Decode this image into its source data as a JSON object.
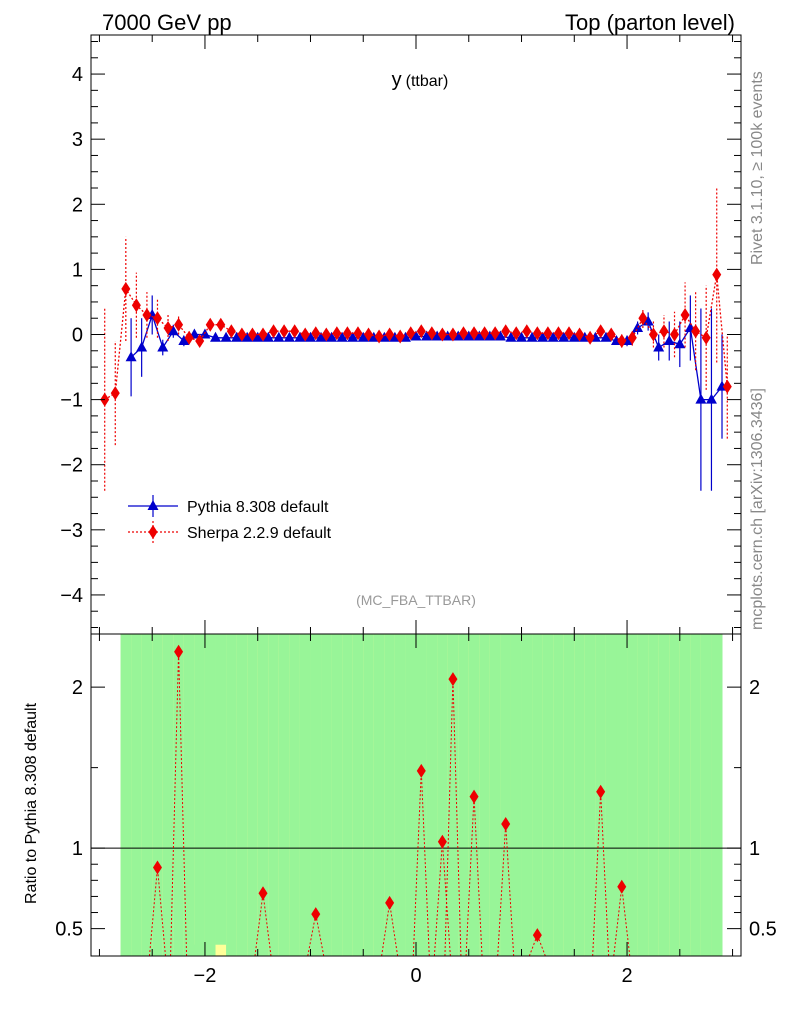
{
  "header": {
    "left": "7000 GeV pp",
    "right": "Top (parton level)"
  },
  "side_labels": {
    "rivet": "Rivet 3.1.10, ≥ 100k events",
    "mcplots": "mcplots.cern.ch [arXiv:1306.3436]"
  },
  "chart_data": [
    {
      "type": "line",
      "title": "y",
      "title_sub": "(ttbar)",
      "analysis": "(MC_FBA_TTBAR)",
      "xlabel": "",
      "ylabel": "",
      "xlim": [
        -3.08,
        3.08
      ],
      "ylim": [
        -4.6,
        4.6
      ],
      "x_ticks": [
        -2,
        0,
        2
      ],
      "y_ticks": [
        -4,
        -3,
        -2,
        -1,
        0,
        1,
        2,
        3,
        4
      ],
      "legend_position": "lower-left",
      "series": [
        {
          "name": "Pythia 8.308 default",
          "color": "#0000cc",
          "marker": "triangle",
          "line": "solid",
          "x": [
            -2.7,
            -2.6,
            -2.5,
            -2.4,
            -2.3,
            -2.2,
            -2.1,
            -2.0,
            -1.9,
            -1.8,
            -1.7,
            -1.6,
            -1.5,
            -1.4,
            -1.3,
            -1.2,
            -1.1,
            -1.0,
            -0.9,
            -0.8,
            -0.7,
            -0.6,
            -0.5,
            -0.4,
            -0.3,
            -0.2,
            -0.1,
            0.0,
            0.1,
            0.2,
            0.3,
            0.4,
            0.5,
            0.6,
            0.7,
            0.8,
            0.9,
            1.0,
            1.1,
            1.2,
            1.3,
            1.4,
            1.5,
            1.6,
            1.7,
            1.8,
            1.9,
            2.0,
            2.1,
            2.2,
            2.3,
            2.4,
            2.5,
            2.6,
            2.7,
            2.8,
            2.9
          ],
          "y": [
            -0.35,
            -0.2,
            0.3,
            -0.2,
            0.05,
            -0.1,
            0.0,
            0.0,
            -0.05,
            -0.05,
            -0.05,
            -0.05,
            -0.05,
            -0.05,
            -0.05,
            -0.05,
            -0.05,
            -0.05,
            -0.05,
            -0.05,
            -0.05,
            -0.05,
            -0.05,
            -0.05,
            -0.05,
            -0.05,
            -0.05,
            -0.03,
            -0.03,
            -0.03,
            -0.03,
            -0.03,
            -0.03,
            -0.03,
            -0.03,
            -0.03,
            -0.05,
            -0.05,
            -0.05,
            -0.05,
            -0.05,
            -0.05,
            -0.05,
            -0.05,
            -0.05,
            -0.05,
            -0.1,
            -0.1,
            0.1,
            0.2,
            -0.2,
            -0.1,
            -0.15,
            0.1,
            -1.0,
            -1.0,
            -0.8
          ],
          "yerr": [
            0.6,
            0.45,
            0.3,
            0.12,
            0.1,
            0.08,
            0.06,
            0.05,
            0.04,
            0.04,
            0.04,
            0.04,
            0.04,
            0.04,
            0.04,
            0.04,
            0.04,
            0.04,
            0.04,
            0.04,
            0.04,
            0.04,
            0.04,
            0.04,
            0.04,
            0.04,
            0.04,
            0.04,
            0.04,
            0.04,
            0.04,
            0.04,
            0.04,
            0.04,
            0.04,
            0.04,
            0.04,
            0.04,
            0.04,
            0.04,
            0.04,
            0.04,
            0.04,
            0.04,
            0.04,
            0.05,
            0.06,
            0.08,
            0.1,
            0.14,
            0.2,
            0.3,
            0.35,
            0.5,
            1.4,
            1.4,
            0.8
          ]
        },
        {
          "name": "Sherpa 2.2.9 default",
          "color": "#ee0000",
          "marker": "diamond",
          "line": "dotted",
          "x": [
            -2.95,
            -2.85,
            -2.75,
            -2.65,
            -2.55,
            -2.45,
            -2.35,
            -2.25,
            -2.15,
            -2.05,
            -1.95,
            -1.85,
            -1.75,
            -1.65,
            -1.55,
            -1.45,
            -1.35,
            -1.25,
            -1.15,
            -1.05,
            -0.95,
            -0.85,
            -0.75,
            -0.65,
            -0.55,
            -0.45,
            -0.35,
            -0.25,
            -0.15,
            -0.05,
            0.05,
            0.15,
            0.25,
            0.35,
            0.45,
            0.55,
            0.65,
            0.75,
            0.85,
            0.95,
            1.05,
            1.15,
            1.25,
            1.35,
            1.45,
            1.55,
            1.65,
            1.75,
            1.85,
            1.95,
            2.05,
            2.15,
            2.25,
            2.35,
            2.45,
            2.55,
            2.65,
            2.75,
            2.85,
            2.95
          ],
          "y": [
            -1.0,
            -0.9,
            0.7,
            0.45,
            0.3,
            0.25,
            0.1,
            0.15,
            -0.05,
            -0.1,
            0.15,
            0.15,
            0.05,
            0.0,
            0.0,
            0.0,
            0.05,
            0.05,
            0.05,
            0.0,
            0.02,
            0.0,
            0.02,
            0.02,
            0.02,
            0.0,
            -0.03,
            0.0,
            -0.03,
            0.02,
            0.05,
            0.02,
            0.0,
            0.0,
            0.02,
            0.02,
            0.02,
            0.02,
            0.05,
            0.02,
            0.05,
            0.02,
            0.02,
            0.02,
            0.02,
            0.0,
            -0.05,
            0.05,
            0.0,
            -0.1,
            -0.05,
            0.25,
            0.0,
            0.05,
            0.0,
            0.3,
            0.05,
            -0.05,
            0.92,
            -0.8
          ],
          "yerr": [
            1.4,
            0.8,
            0.8,
            0.5,
            0.35,
            0.3,
            0.2,
            0.15,
            0.1,
            0.08,
            0.08,
            0.06,
            0.06,
            0.05,
            0.05,
            0.05,
            0.05,
            0.05,
            0.05,
            0.05,
            0.05,
            0.05,
            0.05,
            0.05,
            0.05,
            0.05,
            0.05,
            0.05,
            0.05,
            0.05,
            0.05,
            0.05,
            0.05,
            0.05,
            0.05,
            0.05,
            0.05,
            0.05,
            0.05,
            0.05,
            0.05,
            0.05,
            0.05,
            0.05,
            0.05,
            0.06,
            0.06,
            0.06,
            0.08,
            0.1,
            0.12,
            0.15,
            0.2,
            0.25,
            0.35,
            0.5,
            0.6,
            0.8,
            1.35,
            0.8
          ]
        }
      ]
    },
    {
      "type": "line",
      "ylabel": "Ratio to Pythia 8.308 default",
      "xlim": [
        -3.08,
        3.08
      ],
      "ylim": [
        0.33,
        2.33
      ],
      "x_ticks": [
        -2,
        0,
        2
      ],
      "y_ticks": [
        0.5,
        1,
        2
      ],
      "reference": 1,
      "bands": {
        "x_edges": [
          -2.8,
          -2.7,
          -2.6,
          -2.5,
          -2.4,
          -2.3,
          -2.2,
          -2.1,
          -2.0,
          -1.9,
          -1.8,
          -1.7,
          -1.6,
          -1.5,
          -1.4,
          -1.3,
          -1.2,
          -1.1,
          -1.0,
          -0.9,
          -0.8,
          -0.7,
          -0.6,
          -0.5,
          -0.4,
          -0.3,
          -0.2,
          -0.1,
          0.0,
          0.1,
          0.2,
          0.3,
          0.4,
          0.5,
          0.6,
          0.7,
          0.8,
          0.9,
          1.0,
          1.1,
          1.2,
          1.3,
          1.4,
          1.5,
          1.6,
          1.7,
          1.8,
          1.9,
          2.0,
          2.1,
          2.2,
          2.3,
          2.4,
          2.5,
          2.6,
          2.7,
          2.8,
          2.9
        ],
        "green_lo": [
          0.33,
          0.33,
          0.33,
          0.33,
          0.33,
          0.33,
          0.33,
          0.33,
          0.33,
          0.4,
          0.33,
          0.33,
          0.33,
          0.33,
          0.33,
          0.33,
          0.33,
          0.33,
          0.33,
          0.33,
          0.33,
          0.33,
          0.33,
          0.33,
          0.33,
          0.33,
          0.33,
          0.33,
          0.33,
          0.33,
          0.33,
          0.33,
          0.33,
          0.33,
          0.33,
          0.33,
          0.33,
          0.33,
          0.33,
          0.33,
          0.33,
          0.33,
          0.33,
          0.33,
          0.33,
          0.33,
          0.33,
          0.33,
          0.33,
          0.33,
          0.33,
          0.33,
          0.33,
          0.33,
          0.33,
          0.33,
          0.33
        ],
        "green_hi": [
          2.33,
          2.33,
          2.33,
          2.33,
          2.33,
          2.33,
          2.33,
          2.33,
          2.33,
          2.33,
          2.33,
          2.33,
          2.33,
          2.33,
          2.33,
          2.33,
          2.33,
          2.33,
          2.33,
          2.33,
          2.33,
          2.33,
          2.33,
          2.33,
          2.33,
          2.33,
          2.33,
          2.33,
          2.33,
          2.33,
          2.33,
          2.33,
          2.33,
          2.33,
          2.33,
          2.33,
          2.33,
          2.33,
          2.33,
          2.33,
          2.33,
          2.33,
          2.33,
          2.33,
          2.33,
          2.33,
          2.33,
          2.33,
          2.33,
          2.33,
          2.33,
          2.33,
          2.33,
          2.33,
          2.33,
          2.33,
          2.33
        ],
        "yellow_lo": [
          0.33,
          0.33,
          0.33,
          0.33,
          0.33,
          0.33,
          0.33,
          0.4,
          0.33,
          0.33,
          0.33,
          0.33,
          0.33,
          0.33,
          0.33,
          0.33,
          0.33,
          0.33,
          0.33,
          0.33,
          0.33,
          0.33,
          0.33,
          0.33,
          0.33,
          0.33,
          0.33,
          0.33,
          0.33,
          0.4,
          0.33,
          0.33,
          0.33,
          0.33,
          0.33,
          0.33,
          0.33,
          0.33,
          0.33,
          0.33,
          0.33,
          0.33,
          0.33,
          0.33,
          0.33,
          0.33,
          0.33,
          0.33,
          0.33,
          0.33,
          0.33,
          0.33,
          0.33,
          0.33,
          0.33,
          0.33,
          0.33
        ],
        "yellow_hi": [
          2.33,
          2.33,
          2.33,
          2.33,
          2.33,
          2.33,
          2.33,
          2.33,
          2.33,
          2.33,
          2.33,
          2.33,
          2.33,
          2.33,
          2.33,
          2.33,
          2.33,
          2.33,
          2.33,
          2.33,
          2.33,
          2.33,
          2.33,
          2.33,
          2.33,
          2.33,
          2.33,
          2.33,
          2.33,
          2.33,
          2.33,
          2.33,
          2.33,
          2.33,
          2.33,
          2.33,
          2.33,
          2.33,
          2.33,
          2.33,
          2.33,
          2.33,
          2.33,
          2.33,
          2.33,
          2.33,
          2.33,
          2.33,
          2.33,
          2.33,
          2.33,
          2.33,
          2.33,
          2.33,
          2.33,
          2.33,
          2.33
        ],
        "green_color": "#98f598",
        "yellow_color": "#ffff99"
      },
      "ratio_series": {
        "name": "Sherpa 2.2.9 default",
        "color": "#ee0000",
        "x": [
          -2.45,
          -2.25,
          -1.45,
          -0.95,
          -0.25,
          0.05,
          0.25,
          0.35,
          0.55,
          0.85,
          1.15,
          1.75,
          1.95
        ],
        "y": [
          0.88,
          2.22,
          0.72,
          0.59,
          0.66,
          1.48,
          1.04,
          2.05,
          1.32,
          1.15,
          0.46,
          1.35,
          0.76
        ]
      }
    }
  ]
}
